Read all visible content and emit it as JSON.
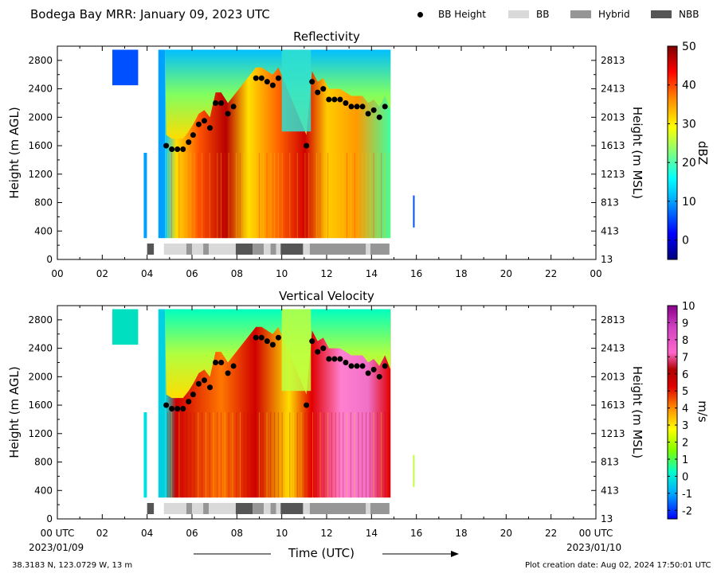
{
  "header": {
    "title": "Bodega Bay MRR:  January 09, 2023 UTC",
    "legend": [
      {
        "label": "BB Height",
        "kind": "dot",
        "color": "#000000"
      },
      {
        "label": "BB",
        "kind": "swatch",
        "color": "#d9d9d9"
      },
      {
        "label": "Hybrid",
        "kind": "swatch",
        "color": "#969696"
      },
      {
        "label": "NBB",
        "kind": "swatch",
        "color": "#555555"
      }
    ]
  },
  "footer": {
    "location": "38.3183 N, 123.0729 W, 13 m",
    "creation": "Plot creation date: Aug 02, 2024 17:50:01 UTC",
    "xaxis_title": "Time (UTC)",
    "start_date": "2023/01/09",
    "end_date": "2023/01/10"
  },
  "chart_data": [
    {
      "type": "heatmap",
      "title": "Reflectivity",
      "ylabel": "Height (m AGL)",
      "ylabel_right": "Height (m MSL)",
      "colorbar_label": "dBZ",
      "colorbar_range": [
        -5,
        50
      ],
      "colorbar_ticks": [
        "0",
        "10",
        "20",
        "30",
        "40",
        "50"
      ],
      "xlim": [
        0,
        24
      ],
      "x_ticks": [
        "00",
        "02",
        "04",
        "06",
        "08",
        "10",
        "12",
        "14",
        "16",
        "18",
        "20",
        "22",
        "00"
      ],
      "ylim": [
        0,
        3000
      ],
      "y_ticks_left": [
        "0",
        "400",
        "800",
        "1200",
        "1600",
        "2000",
        "2400",
        "2800"
      ],
      "y_ticks_right": [
        "13",
        "413",
        "813",
        "1213",
        "1613",
        "2013",
        "2413",
        "2813"
      ],
      "bb_height": {
        "x": [
          4.85,
          5.1,
          5.35,
          5.6,
          5.85,
          6.05,
          6.3,
          6.55,
          6.8,
          7.05,
          7.3,
          7.6,
          7.85,
          8.85,
          9.1,
          9.35,
          9.6,
          9.85,
          11.1,
          11.35,
          11.6,
          11.85,
          12.1,
          12.35,
          12.6,
          12.85,
          13.1,
          13.35,
          13.6,
          13.85,
          14.1,
          14.35,
          14.6
        ],
        "y": [
          1600,
          1550,
          1550,
          1550,
          1650,
          1750,
          1900,
          1950,
          1850,
          2200,
          2200,
          2050,
          2150,
          2550,
          2550,
          2500,
          2450,
          2550,
          1600,
          2500,
          2350,
          2400,
          2250,
          2250,
          2250,
          2200,
          2150,
          2150,
          2150,
          2050,
          2100,
          2000,
          2150
        ]
      },
      "bb_type": [
        {
          "start": 4.0,
          "end": 4.3,
          "type": "NBB"
        },
        {
          "start": 4.75,
          "end": 5.75,
          "type": "BB"
        },
        {
          "start": 5.75,
          "end": 6.0,
          "type": "Hybrid"
        },
        {
          "start": 6.0,
          "end": 6.5,
          "type": "BB"
        },
        {
          "start": 6.5,
          "end": 6.75,
          "type": "Hybrid"
        },
        {
          "start": 6.75,
          "end": 7.95,
          "type": "BB"
        },
        {
          "start": 7.95,
          "end": 8.7,
          "type": "NBB"
        },
        {
          "start": 8.7,
          "end": 9.2,
          "type": "Hybrid"
        },
        {
          "start": 9.2,
          "end": 9.5,
          "type": "BB"
        },
        {
          "start": 9.5,
          "end": 9.75,
          "type": "Hybrid"
        },
        {
          "start": 9.75,
          "end": 9.95,
          "type": "BB"
        },
        {
          "start": 9.95,
          "end": 10.95,
          "type": "NBB"
        },
        {
          "start": 10.95,
          "end": 11.25,
          "type": "BB"
        },
        {
          "start": 11.25,
          "end": 13.75,
          "type": "Hybrid"
        },
        {
          "start": 13.75,
          "end": 13.95,
          "type": "BB"
        },
        {
          "start": 13.95,
          "end": 14.8,
          "type": "Hybrid"
        }
      ]
    },
    {
      "type": "heatmap",
      "title": "Vertical Velocity",
      "ylabel": "Height (m AGL)",
      "ylabel_right": "Height (m MSL)",
      "colorbar_label": "m/s",
      "colorbar_range": [
        -2.5,
        10
      ],
      "colorbar_ticks": [
        "-2",
        "-1",
        "0",
        "1",
        "2",
        "3",
        "4",
        "5",
        "6",
        "7",
        "8",
        "9",
        "10"
      ],
      "xlim": [
        0,
        24
      ],
      "x_ticks": [
        "00 UTC",
        "02",
        "04",
        "06",
        "08",
        "10",
        "12",
        "14",
        "16",
        "18",
        "20",
        "22",
        "00 UTC"
      ],
      "ylim": [
        0,
        3000
      ],
      "y_ticks_left": [
        "0",
        "400",
        "800",
        "1200",
        "1600",
        "2000",
        "2400",
        "2800"
      ],
      "y_ticks_right": [
        "13",
        "413",
        "813",
        "1213",
        "1613",
        "2013",
        "2413",
        "2813"
      ],
      "bb_height": {
        "x": [
          4.85,
          5.1,
          5.35,
          5.6,
          5.85,
          6.05,
          6.3,
          6.55,
          6.8,
          7.05,
          7.3,
          7.6,
          7.85,
          8.85,
          9.1,
          9.35,
          9.6,
          9.85,
          11.1,
          11.35,
          11.6,
          11.85,
          12.1,
          12.35,
          12.6,
          12.85,
          13.1,
          13.35,
          13.6,
          13.85,
          14.1,
          14.35,
          14.6
        ],
        "y": [
          1600,
          1550,
          1550,
          1550,
          1650,
          1750,
          1900,
          1950,
          1850,
          2200,
          2200,
          2050,
          2150,
          2550,
          2550,
          2500,
          2450,
          2550,
          1600,
          2500,
          2350,
          2400,
          2250,
          2250,
          2250,
          2200,
          2150,
          2150,
          2150,
          2050,
          2100,
          2000,
          2150
        ]
      }
    }
  ]
}
